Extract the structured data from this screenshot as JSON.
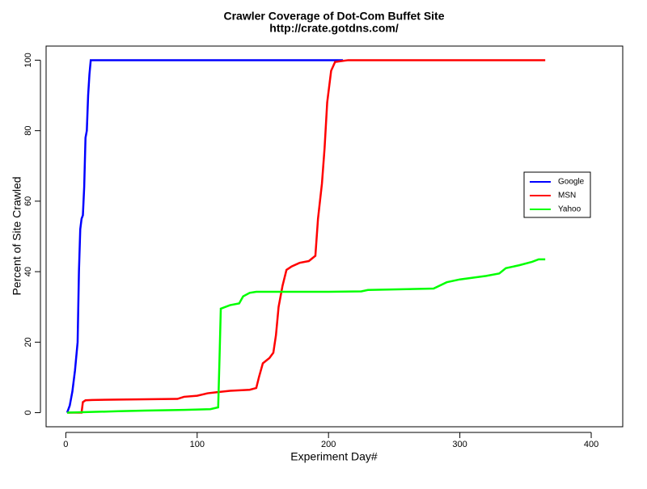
{
  "chart_data": {
    "type": "line",
    "title": "Crawler Coverage of Dot-Com Buffet Site",
    "subtitle": "http://crate.gotdns.com/",
    "x_label": "Experiment Day#",
    "y_label": "Percent of Site Crawled",
    "xlim": [
      -15,
      424
    ],
    "ylim": [
      -4,
      104
    ],
    "xticks": [
      0,
      100,
      200,
      300,
      400
    ],
    "yticks": [
      0,
      20,
      40,
      60,
      80,
      100
    ],
    "legend": "right",
    "series": [
      {
        "name": "Google",
        "color": "#0000ff",
        "x": [
          1,
          3,
          5,
          7,
          9,
          10,
          11,
          12,
          13,
          14,
          15,
          16,
          17,
          18,
          19,
          211
        ],
        "values": [
          0,
          2,
          6,
          12,
          20,
          40,
          52,
          55,
          56,
          64,
          78,
          80,
          90,
          96,
          100,
          100
        ]
      },
      {
        "name": "MSN",
        "color": "#ff0000",
        "x": [
          1,
          12,
          13,
          15,
          20,
          40,
          60,
          85,
          90,
          100,
          108,
          115,
          125,
          140,
          145,
          147,
          150,
          155,
          158,
          160,
          162,
          165,
          168,
          172,
          178,
          185,
          190,
          192,
          195,
          197,
          199,
          202,
          205,
          215,
          365
        ],
        "values": [
          0,
          0,
          3,
          3.5,
          3.6,
          3.7,
          3.8,
          3.9,
          4.5,
          4.8,
          5.5,
          5.8,
          6.2,
          6.5,
          7,
          10,
          14,
          15.5,
          17,
          22,
          30,
          36,
          40.5,
          41.5,
          42.5,
          43,
          44.5,
          55,
          65,
          75,
          88,
          97,
          99.5,
          100,
          100
        ]
      },
      {
        "name": "Yahoo",
        "color": "#00ff00",
        "x": [
          1,
          20,
          40,
          60,
          90,
          110,
          116,
          117,
          118,
          125,
          132,
          135,
          140,
          145,
          200,
          225,
          230,
          280,
          290,
          300,
          320,
          330,
          335,
          345,
          355,
          360,
          365
        ],
        "values": [
          0,
          0.2,
          0.4,
          0.6,
          0.8,
          1,
          1.5,
          15,
          29.5,
          30.5,
          31,
          33,
          34,
          34.3,
          34.3,
          34.4,
          34.8,
          35.2,
          37,
          37.8,
          38.8,
          39.5,
          41,
          41.8,
          42.8,
          43.5,
          43.5
        ]
      }
    ]
  }
}
